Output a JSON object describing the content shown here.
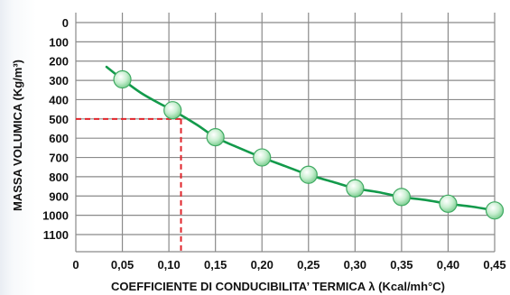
{
  "chart_data": {
    "type": "line",
    "xlabel": "COEFFICIENTE DI CONDUCIBILITA’ TERMICA λ (Kcal/mh°C)",
    "ylabel": "MASSA VOLUMICA (Kg/m³)",
    "xlim": [
      0,
      0.45
    ],
    "ylim": [
      0,
      1150
    ],
    "y_inverted": true,
    "grid": true,
    "x_ticks": [
      "0",
      "0,05",
      "0,10",
      "0,15",
      "0,20",
      "0,25",
      "0,30",
      "0,35",
      "0,40",
      "0,45"
    ],
    "x_tick_values": [
      0,
      0.05,
      0.1,
      0.15,
      0.2,
      0.25,
      0.3,
      0.35,
      0.4,
      0.45
    ],
    "y_ticks": [
      "0",
      "100",
      "200",
      "300",
      "400",
      "500",
      "600",
      "700",
      "800",
      "900",
      "1000",
      "1100"
    ],
    "y_tick_values": [
      0,
      100,
      200,
      300,
      400,
      500,
      600,
      700,
      800,
      900,
      1000,
      1100
    ],
    "series": [
      {
        "curve": [
          [
            0.033,
            230
          ],
          [
            0.05,
            295
          ],
          [
            0.07,
            365
          ],
          [
            0.09,
            420
          ],
          [
            0.104,
            455
          ],
          [
            0.13,
            530
          ],
          [
            0.15,
            595
          ],
          [
            0.175,
            650
          ],
          [
            0.2,
            700
          ],
          [
            0.225,
            745
          ],
          [
            0.25,
            790
          ],
          [
            0.275,
            825
          ],
          [
            0.3,
            860
          ],
          [
            0.325,
            880
          ],
          [
            0.35,
            905
          ],
          [
            0.375,
            920
          ],
          [
            0.4,
            940
          ],
          [
            0.425,
            955
          ],
          [
            0.45,
            975
          ]
        ],
        "points": [
          [
            0.05,
            295
          ],
          [
            0.104,
            455
          ],
          [
            0.15,
            595
          ],
          [
            0.2,
            700
          ],
          [
            0.25,
            790
          ],
          [
            0.3,
            860
          ],
          [
            0.35,
            905
          ],
          [
            0.4,
            940
          ],
          [
            0.45,
            975
          ]
        ],
        "color": "#139a4b"
      }
    ],
    "annotation": {
      "x": 0.113,
      "y": 500,
      "color": "#e0242a",
      "style": "dashed"
    },
    "point_color": "#bfe8c7",
    "grid_color": "#8a8a8a",
    "background_color": "#ffffff"
  }
}
